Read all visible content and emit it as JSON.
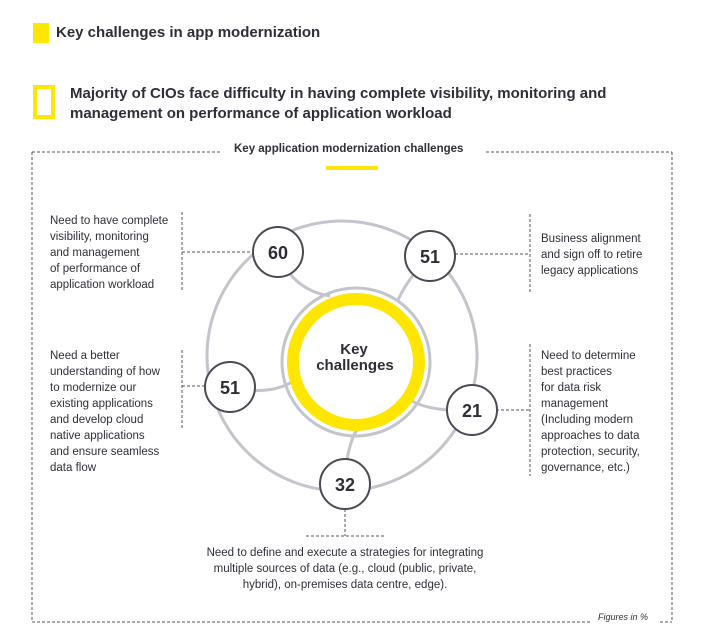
{
  "header": {
    "title": "Key challenges in app modernization",
    "subtitle": "Majority of CIOs face difficulty in having complete visibility, monitoring and management on performance of application workload"
  },
  "diagram": {
    "box_label": "Key application modernization challenges",
    "center_label_line1": "Key",
    "center_label_line2": "challenges",
    "nodes": [
      {
        "value": "60",
        "description": [
          "Need to have complete",
          "visibility, monitoring",
          "and management",
          "of performance of",
          "application workload"
        ]
      },
      {
        "value": "51",
        "description": [
          "Business alignment",
          "and sign off to retire",
          "legacy applications"
        ]
      },
      {
        "value": "51",
        "description": [
          "Need a better",
          "understanding of how",
          "to modernize our",
          "existing applications",
          "and develop cloud",
          "native applications",
          "and ensure seamless",
          "data flow"
        ]
      },
      {
        "value": "21",
        "description": [
          "Need to determine",
          "best practices",
          "for data risk",
          "management",
          "(Including modern",
          "approaches to data",
          "protection, security,",
          "governance, etc.)"
        ]
      },
      {
        "value": "32",
        "description": [
          "Need to define and execute a strategies for integrating",
          "multiple sources of data (e.g., cloud (public, private,",
          "hybrid), on-premises data centre, edge)."
        ]
      }
    ],
    "footnote": "Figures in %"
  },
  "colors": {
    "accent": "#ffe600",
    "text": "#2e2e38",
    "ring": "#c4c4cd",
    "node_border": "#4a4a55"
  }
}
